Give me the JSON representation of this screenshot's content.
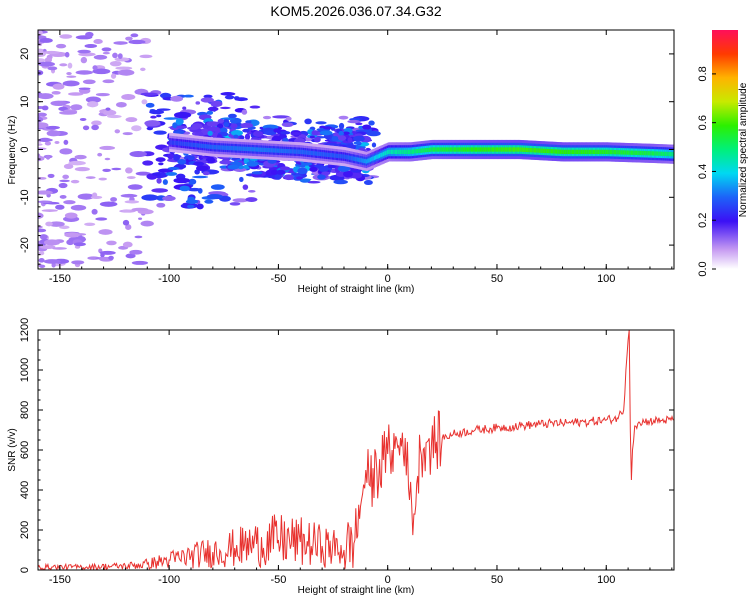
{
  "title": "KOM5.2026.036.07.34.G32",
  "chart_data": [
    {
      "type": "heatmap",
      "name": "spectrogram",
      "xlabel": "Height of straight line (km)",
      "ylabel": "Frequency (Hz)",
      "xlim": [
        -160,
        131
      ],
      "ylim": [
        -25,
        25
      ],
      "xticks": [
        -150,
        -100,
        -50,
        0,
        50,
        100
      ],
      "yticks": [
        -20,
        -10,
        0,
        10,
        20
      ],
      "colorbar": {
        "label": "Normalized spectral amplitude",
        "range": [
          0,
          0.98
        ],
        "ticks": [
          0.0,
          0.2,
          0.4,
          0.6,
          0.8
        ]
      },
      "ridge": {
        "description_values": "dominant frequency trace",
        "x": [
          -100,
          -80,
          -60,
          -40,
          -20,
          -10,
          0,
          10,
          20,
          40,
          60,
          80,
          100,
          120,
          131
        ],
        "freq": [
          1.5,
          0.5,
          0,
          -0.5,
          -1.5,
          -2.5,
          -0.5,
          -0.5,
          0,
          0,
          0,
          -0.5,
          -0.5,
          -0.8,
          -1.0
        ],
        "amplitude": [
          0.25,
          0.3,
          0.32,
          0.3,
          0.28,
          0.35,
          0.45,
          0.5,
          0.55,
          0.6,
          0.62,
          0.6,
          0.58,
          0.55,
          0.5
        ]
      }
    },
    {
      "type": "line",
      "name": "snr",
      "xlabel": "Height of straight line (km)",
      "ylabel": "SNR (v/v)",
      "xlim": [
        -160,
        131
      ],
      "ylim": [
        0,
        1200
      ],
      "xticks": [
        -150,
        -100,
        -50,
        0,
        50,
        100
      ],
      "yticks": [
        0,
        200,
        400,
        600,
        800,
        1000,
        1200
      ],
      "color": "#e8322f",
      "series": [
        {
          "name": "SNR",
          "x": [
            -160,
            -140,
            -120,
            -110,
            -100,
            -90,
            -80,
            -70,
            -60,
            -50,
            -40,
            -30,
            -20,
            -15,
            -12,
            -10,
            -8,
            -5,
            -2,
            0,
            2,
            5,
            8,
            10,
            12,
            15,
            18,
            20,
            25,
            30,
            40,
            50,
            60,
            70,
            80,
            90,
            100,
            105,
            108,
            109,
            110,
            110.5,
            111,
            111.5,
            112,
            113,
            115,
            120,
            125,
            131
          ],
          "y": [
            15,
            15,
            20,
            30,
            50,
            70,
            90,
            110,
            130,
            150,
            140,
            120,
            100,
            150,
            350,
            500,
            420,
            500,
            550,
            580,
            600,
            620,
            660,
            350,
            280,
            600,
            640,
            620,
            660,
            680,
            700,
            710,
            720,
            730,
            735,
            740,
            750,
            760,
            800,
            1000,
            1150,
            1200,
            700,
            450,
            600,
            720,
            740,
            745,
            748,
            750
          ]
        }
      ]
    }
  ]
}
